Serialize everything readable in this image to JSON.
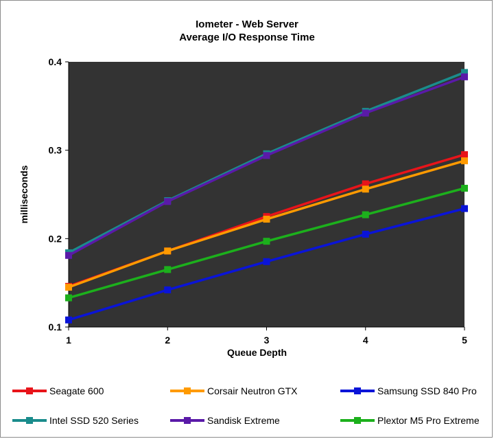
{
  "chart_data": {
    "type": "line",
    "title": "Iometer - Web Server",
    "subtitle": "Average I/O Response Time",
    "xlabel": "Queue Depth",
    "ylabel": "milliseconds",
    "x": [
      1,
      2,
      3,
      4,
      5
    ],
    "xticks": [
      "1",
      "2",
      "3",
      "4",
      "5"
    ],
    "ylim": [
      0.1,
      0.4
    ],
    "yticks": [
      "0.1",
      "0.2",
      "0.3",
      "0.4"
    ],
    "grid": false,
    "plot_background": "#333333",
    "legend_position": "bottom",
    "series": [
      {
        "name": "Seagate 600",
        "color": "#e8141a",
        "values": [
          0.146,
          0.186,
          0.225,
          0.262,
          0.295
        ]
      },
      {
        "name": "Corsair Neutron GTX",
        "color": "#ff9a00",
        "values": [
          0.145,
          0.186,
          0.222,
          0.256,
          0.288
        ]
      },
      {
        "name": "Samsung SSD 840 Pro",
        "color": "#0a14d8",
        "values": [
          0.108,
          0.142,
          0.174,
          0.205,
          0.234
        ]
      },
      {
        "name": "Intel SSD 520 Series",
        "color": "#1a8c8c",
        "values": [
          0.184,
          0.243,
          0.296,
          0.344,
          0.388
        ]
      },
      {
        "name": "Sandisk Extreme",
        "color": "#5a1aa8",
        "values": [
          0.181,
          0.242,
          0.294,
          0.342,
          0.383
        ]
      },
      {
        "name": "Plextor M5 Pro Extreme",
        "color": "#1cb01c",
        "values": [
          0.133,
          0.165,
          0.197,
          0.227,
          0.257
        ]
      }
    ]
  }
}
